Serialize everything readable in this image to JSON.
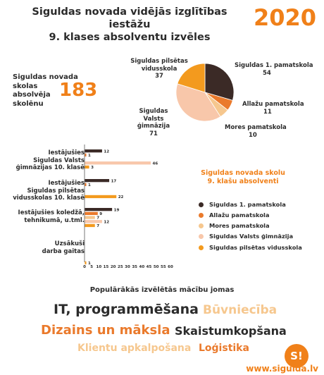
{
  "header": {
    "title_line1": "Siguldas novada vidējās izglītības iestāžu",
    "title_line2": "9. klases absolventu izvēles",
    "year": "2020"
  },
  "total": {
    "label_line1": "Siguldas novada skolas",
    "label_line2": "absolvēja",
    "label_line3": "skolēnu",
    "value": "183"
  },
  "chart_data": [
    {
      "type": "pie",
      "categories": [
        "Siguldas 1. pamatskola",
        "Allažu pamatskola",
        "Mores pamatskola",
        "Siguldas Valsts ģimnāzija",
        "Siguldas pilsētas vidusskola"
      ],
      "values": [
        54,
        11,
        10,
        71,
        37
      ],
      "colors": [
        "#3b2a26",
        "#ea7a2c",
        "#f6c78e",
        "#f8c7aa",
        "#f39a1e"
      ],
      "labels": [
        {
          "line1": "Siguldas 1. pamatskola",
          "line2": "",
          "value": "54"
        },
        {
          "line1": "Allažu pamatskola",
          "line2": "",
          "value": "11"
        },
        {
          "line1": "Mores pamatskola",
          "line2": "",
          "value": "10"
        },
        {
          "line1": "Siguldas Valsts",
          "line2": "ģimnāzija",
          "value": "71"
        },
        {
          "line1": "Siguldas pilsētas",
          "line2": "vidusskola",
          "value": "37"
        }
      ]
    },
    {
      "type": "bar",
      "orientation": "horizontal",
      "groups": [
        {
          "label_lines": [
            "Iestājušies",
            "Siguldas Valsts",
            "ģimnāzijas 10. klasē"
          ],
          "values": [
            12,
            1,
            0,
            46,
            3
          ]
        },
        {
          "label_lines": [
            "Iestājušies",
            "Siguldas pilsētas",
            "vidusskolas 10. klasē"
          ],
          "values": [
            17,
            1,
            0,
            0,
            22
          ]
        },
        {
          "label_lines": [
            "Iestājušies koledžā,",
            "tehnikumā, u.tml."
          ],
          "values": [
            19,
            9,
            7,
            12,
            7
          ]
        },
        {
          "label_lines": [
            "Uzsākuši",
            "darba gaitas"
          ],
          "values": [
            0,
            0,
            0,
            0,
            1
          ]
        }
      ],
      "series_colors": [
        "#3b2a26",
        "#ea7a2c",
        "#f6c78e",
        "#f8c7aa",
        "#f39a1e"
      ],
      "xlim": [
        0,
        60
      ],
      "ticks": [
        "0",
        "5",
        "10",
        "15",
        "20",
        "25",
        "30",
        "35",
        "40",
        "45",
        "50",
        "55",
        "60"
      ]
    }
  ],
  "legend": {
    "title_line1": "Siguldas novada skolu",
    "title_line2": "9. klašu absolventi",
    "items": [
      {
        "label": "Siguldas 1. pamatskola",
        "color": "#3b2a26"
      },
      {
        "label": "Allažu pamatskola",
        "color": "#ea7a2c"
      },
      {
        "label": "Mores pamatskola",
        "color": "#f6c78e"
      },
      {
        "label": "Siguldas Valsts ģimnāzija",
        "color": "#f8c7aa"
      },
      {
        "label": "Siguldas pilsētas vidusskola",
        "color": "#f39a1e"
      }
    ]
  },
  "fields": {
    "heading": "Populārākās izvēlētās mācību jomas",
    "items": [
      {
        "text": "IT, programmēšana",
        "color": "#2b2b2b"
      },
      {
        "text": "Būvniecība",
        "color": "#f6c78e"
      },
      {
        "text": "Dizains un māksla",
        "color": "#ea7a2c"
      },
      {
        "text": "Skaistumkopšana",
        "color": "#2b2b2b"
      },
      {
        "text": "Klientu apkalpošana",
        "color": "#f6c78e"
      },
      {
        "text": "Loģistika",
        "color": "#ea7a2c"
      }
    ]
  },
  "footer": {
    "url": "www.sigulda.lv",
    "logo_text": "S!"
  }
}
